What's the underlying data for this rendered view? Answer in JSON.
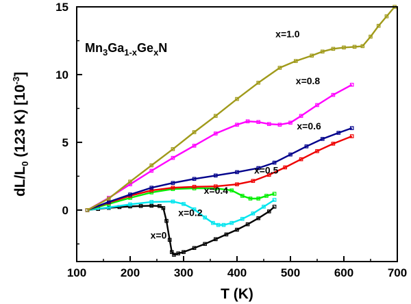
{
  "chart_data": {
    "type": "line",
    "title": "",
    "annotation": {
      "parts": [
        {
          "text": "Mn",
          "sub": false
        },
        {
          "text": "3",
          "sub": true
        },
        {
          "text": "Ga",
          "sub": false
        },
        {
          "text": "1-x",
          "sub": true
        },
        {
          "text": "Ge",
          "sub": false
        },
        {
          "text": "x",
          "sub": true
        },
        {
          "text": "N",
          "sub": false
        }
      ]
    },
    "xlabel": "T (K)",
    "ylabel": {
      "main": "dL/L",
      "sub": "0",
      "mid": " (123 K) [10",
      "sup": "-3",
      "end": "]"
    },
    "xlim": [
      100,
      700
    ],
    "ylim": [
      -3.8,
      15
    ],
    "xticks": [
      100,
      200,
      300,
      400,
      500,
      600,
      700
    ],
    "yticks": [
      0,
      5,
      10,
      15
    ],
    "grid": false,
    "series": [
      {
        "name": "x=0",
        "color": "#000000",
        "label_at": [
          238,
          -2.1
        ],
        "x": [
          120,
          140,
          160,
          180,
          200,
          220,
          240,
          255,
          262,
          268,
          274,
          278,
          282,
          290,
          300,
          320,
          340,
          360,
          380,
          400,
          420,
          440,
          460,
          470
        ],
        "y": [
          0,
          0.08,
          0.16,
          0.22,
          0.27,
          0.3,
          0.32,
          0.3,
          0.15,
          -0.8,
          -2.2,
          -3.1,
          -3.3,
          -3.2,
          -3.1,
          -2.8,
          -2.5,
          -2.15,
          -1.8,
          -1.45,
          -1.05,
          -0.6,
          -0.1,
          0.25
        ]
      },
      {
        "name": "x=0.2",
        "color": "#00e5ee",
        "label_at": [
          290,
          -0.45
        ],
        "x": [
          120,
          160,
          200,
          240,
          280,
          300,
          320,
          340,
          355,
          365,
          375,
          390,
          410,
          430,
          450,
          470
        ],
        "y": [
          0,
          0.2,
          0.42,
          0.6,
          0.63,
          0.45,
          0.05,
          -0.55,
          -0.95,
          -1.1,
          -1.1,
          -0.95,
          -0.65,
          -0.25,
          0.25,
          0.75
        ]
      },
      {
        "name": "x=0.4",
        "color": "#00ee00",
        "label_at": [
          338,
          1.2
        ],
        "x": [
          120,
          160,
          200,
          240,
          280,
          320,
          360,
          390,
          410,
          425,
          440,
          455,
          470
        ],
        "y": [
          0,
          0.45,
          0.9,
          1.3,
          1.55,
          1.6,
          1.6,
          1.45,
          1.05,
          0.85,
          0.85,
          1.05,
          1.2
        ]
      },
      {
        "name": "x=0.5",
        "color": "#ee0000",
        "label_at": [
          432,
          2.7
        ],
        "x": [
          120,
          160,
          200,
          240,
          280,
          320,
          360,
          400,
          430,
          460,
          490,
          520,
          550,
          580,
          615
        ],
        "y": [
          0,
          0.55,
          1.05,
          1.45,
          1.65,
          1.72,
          1.75,
          1.9,
          2.15,
          2.6,
          3.15,
          3.75,
          4.35,
          4.9,
          5.45
        ]
      },
      {
        "name": "x=0.6",
        "color": "#00008b",
        "label_at": [
          512,
          5.95
        ],
        "x": [
          120,
          160,
          200,
          240,
          280,
          320,
          360,
          400,
          440,
          470,
          500,
          530,
          560,
          590,
          615
        ],
        "y": [
          0,
          0.6,
          1.15,
          1.65,
          2.0,
          2.3,
          2.55,
          2.8,
          3.1,
          3.5,
          4.1,
          4.7,
          5.25,
          5.7,
          6.05
        ]
      },
      {
        "name": "x=0.8",
        "color": "#ff00ff",
        "label_at": [
          510,
          9.3
        ],
        "x": [
          120,
          160,
          200,
          240,
          280,
          320,
          360,
          400,
          420,
          440,
          460,
          480,
          500,
          520,
          550,
          580,
          615
        ],
        "y": [
          0,
          0.9,
          1.9,
          2.9,
          3.85,
          4.75,
          5.65,
          6.3,
          6.55,
          6.5,
          6.35,
          6.3,
          6.45,
          6.95,
          7.75,
          8.5,
          9.25
        ]
      },
      {
        "name": "x=1.0",
        "color": "#a09a1a",
        "label_at": [
          472,
          12.75
        ],
        "x": [
          120,
          160,
          200,
          240,
          280,
          320,
          360,
          400,
          440,
          480,
          510,
          540,
          560,
          580,
          600,
          620,
          635,
          650,
          665,
          680,
          695
        ],
        "y": [
          0,
          0.85,
          2.1,
          3.3,
          4.5,
          5.75,
          6.95,
          8.2,
          9.4,
          10.5,
          11.0,
          11.4,
          11.7,
          11.9,
          12.0,
          12.05,
          12.1,
          12.8,
          13.6,
          14.3,
          15.0
        ]
      }
    ]
  }
}
